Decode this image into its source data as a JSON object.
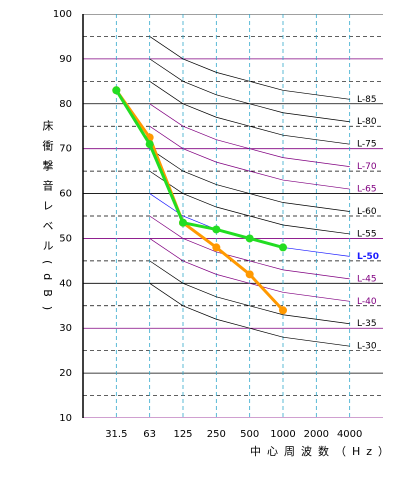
{
  "chart_data": {
    "type": "line",
    "ylabel": "床衝撃音レベル(dB)",
    "xlabel": "中心周波数（Hz）",
    "categories": [
      "31.5",
      "63",
      "125",
      "250",
      "500",
      "1000",
      "2000",
      "4000"
    ],
    "ylim": [
      10,
      100
    ],
    "yticks": [
      10,
      20,
      30,
      40,
      50,
      60,
      70,
      80,
      90,
      100
    ],
    "yticks_minor": [
      15,
      25,
      35,
      45,
      55,
      65,
      75,
      85,
      95
    ],
    "grid": true,
    "reference_curves": [
      {
        "name": "L-85",
        "color": "#000000",
        "values": [
          null,
          95,
          90,
          87,
          85,
          83,
          82,
          81
        ]
      },
      {
        "name": "L-80",
        "color": "#000000",
        "values": [
          null,
          90,
          85,
          82,
          80,
          78,
          77,
          76
        ]
      },
      {
        "name": "L-75",
        "color": "#000000",
        "values": [
          null,
          85,
          80,
          77,
          75,
          73,
          72,
          71
        ]
      },
      {
        "name": "L-70",
        "color": "#800080",
        "values": [
          null,
          80,
          75,
          72,
          70,
          68,
          67,
          66
        ]
      },
      {
        "name": "L-65",
        "color": "#800080",
        "values": [
          null,
          75,
          70,
          67,
          65,
          63,
          62,
          61
        ]
      },
      {
        "name": "L-60",
        "color": "#000000",
        "values": [
          null,
          70,
          65,
          62,
          60,
          58,
          57,
          56
        ]
      },
      {
        "name": "L-55",
        "color": "#000000",
        "values": [
          null,
          65,
          60,
          57,
          55,
          53,
          52,
          51
        ]
      },
      {
        "name": "L-50",
        "color": "#1a1aff",
        "values": [
          null,
          60,
          55,
          52,
          50,
          48,
          47,
          46
        ]
      },
      {
        "name": "L-45",
        "color": "#800080",
        "values": [
          null,
          55,
          50,
          47,
          45,
          43,
          42,
          41
        ]
      },
      {
        "name": "L-40",
        "color": "#800080",
        "values": [
          null,
          50,
          45,
          42,
          40,
          38,
          37,
          36
        ]
      },
      {
        "name": "L-35",
        "color": "#000000",
        "values": [
          null,
          45,
          40,
          37,
          35,
          33,
          32,
          31
        ]
      },
      {
        "name": "L-30",
        "color": "#000000",
        "values": [
          null,
          40,
          35,
          32,
          30,
          28,
          27,
          26
        ]
      }
    ],
    "series": [
      {
        "color": "#ff9900",
        "values": [
          83,
          72.5,
          53.5,
          48,
          42,
          34,
          null,
          null
        ]
      },
      {
        "color": "#22dd22",
        "values": [
          83,
          71,
          53.5,
          52,
          50,
          48,
          null,
          null
        ]
      }
    ]
  }
}
